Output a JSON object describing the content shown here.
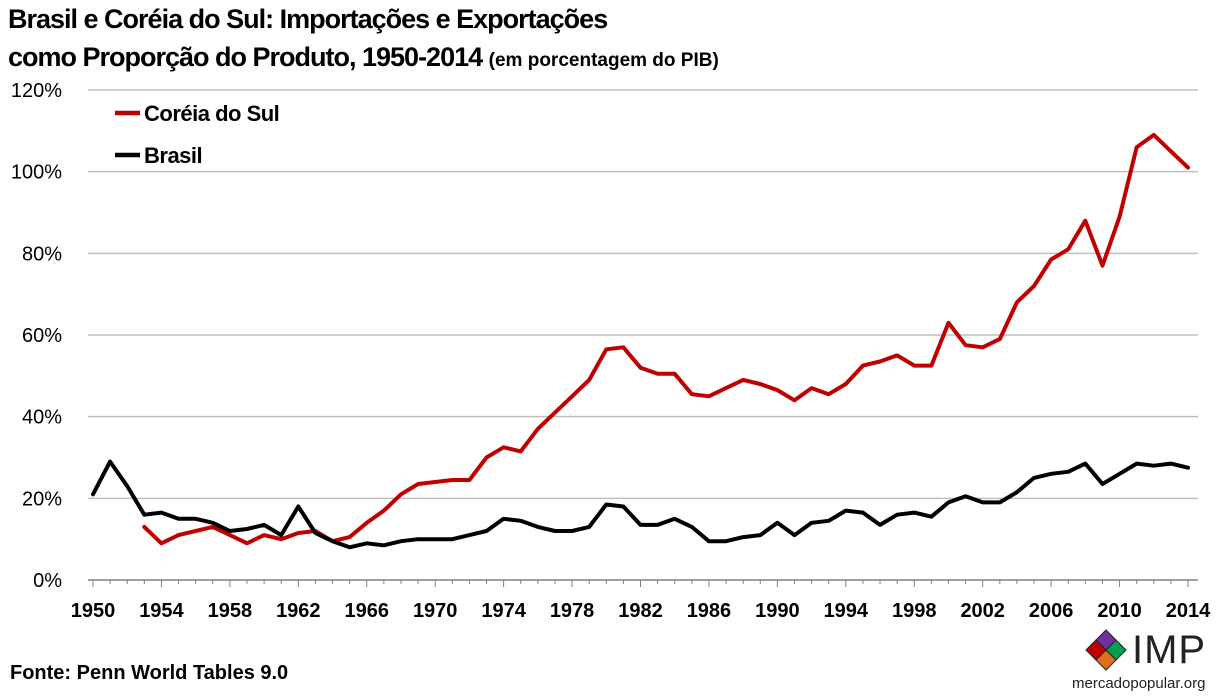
{
  "header": {
    "title_line1": "Brasil e Coréia do Sul: Importações e Exportações",
    "title_line2": "como Proporção do Produto, 1950-2014",
    "title_note": "(em porcentagem do PIB)"
  },
  "footer": {
    "source": "Fonte: Penn World Tables 9.0",
    "logo_text": "IMP",
    "logo_url": "mercadopopular.org"
  },
  "colors": {
    "korea": "#c00000",
    "brazil": "#000000",
    "grid": "#c0c0c0",
    "logo_diamonds": [
      "#7030a0",
      "#c00000",
      "#00a050",
      "#e07020"
    ]
  },
  "chart_data": {
    "type": "line",
    "title": "Brasil e Coréia do Sul: Importações e Exportações como Proporção do Produto, 1950-2014",
    "subtitle": "(em porcentagem do PIB)",
    "xlabel": "",
    "ylabel": "",
    "xlim": [
      1950,
      2014
    ],
    "ylim": [
      0,
      120
    ],
    "x_ticks": [
      "1950",
      "1954",
      "1958",
      "1962",
      "1966",
      "1970",
      "1974",
      "1978",
      "1982",
      "1986",
      "1990",
      "1994",
      "1998",
      "2002",
      "2006",
      "2010",
      "2014"
    ],
    "y_ticks": [
      "0%",
      "20%",
      "40%",
      "60%",
      "80%",
      "100%",
      "120%"
    ],
    "grid": "horizontal",
    "legend_position": "top-left",
    "series": [
      {
        "name": "Coréia do Sul",
        "color": "#c00000",
        "x": [
          1953,
          1954,
          1955,
          1956,
          1957,
          1958,
          1959,
          1960,
          1961,
          1962,
          1963,
          1964,
          1965,
          1966,
          1967,
          1968,
          1969,
          1970,
          1971,
          1972,
          1973,
          1974,
          1975,
          1976,
          1977,
          1978,
          1979,
          1980,
          1981,
          1982,
          1983,
          1984,
          1985,
          1986,
          1987,
          1988,
          1989,
          1990,
          1991,
          1992,
          1993,
          1994,
          1995,
          1996,
          1997,
          1998,
          1999,
          2000,
          2001,
          2002,
          2003,
          2004,
          2005,
          2006,
          2007,
          2008,
          2009,
          2010,
          2011,
          2012,
          2013,
          2014
        ],
        "values": [
          13,
          9,
          11,
          12,
          13,
          11,
          9,
          11,
          10,
          11.5,
          12,
          9.5,
          10.5,
          14,
          17,
          21,
          23.5,
          24,
          24.5,
          24.5,
          30,
          32.5,
          31.5,
          37,
          41,
          45,
          49,
          56.5,
          57,
          52,
          50.5,
          50.5,
          45.5,
          45,
          47,
          49,
          48,
          46.5,
          44,
          47,
          45.5,
          48,
          52.5,
          53.5,
          55,
          52.5,
          52.5,
          63,
          57.5,
          57,
          59,
          68,
          72,
          78.5,
          81,
          88,
          77,
          89,
          106,
          109,
          105,
          101
        ]
      },
      {
        "name": "Brasil",
        "color": "#000000",
        "x": [
          1950,
          1951,
          1952,
          1953,
          1954,
          1955,
          1956,
          1957,
          1958,
          1959,
          1960,
          1961,
          1962,
          1963,
          1964,
          1965,
          1966,
          1967,
          1968,
          1969,
          1970,
          1971,
          1972,
          1973,
          1974,
          1975,
          1976,
          1977,
          1978,
          1979,
          1980,
          1981,
          1982,
          1983,
          1984,
          1985,
          1986,
          1987,
          1988,
          1989,
          1990,
          1991,
          1992,
          1993,
          1994,
          1995,
          1996,
          1997,
          1998,
          1999,
          2000,
          2001,
          2002,
          2003,
          2004,
          2005,
          2006,
          2007,
          2008,
          2009,
          2010,
          2011,
          2012,
          2013,
          2014
        ],
        "values": [
          21,
          29,
          23,
          16,
          16.5,
          15,
          15,
          14,
          12,
          12.5,
          13.5,
          11,
          18,
          11.5,
          9.5,
          8,
          9,
          8.5,
          9.5,
          10,
          10,
          10,
          11,
          12,
          15,
          14.5,
          13,
          12,
          12,
          13,
          18.5,
          18,
          13.5,
          13.5,
          15,
          13,
          9.5,
          9.5,
          10.5,
          11,
          14,
          11,
          14,
          14.5,
          17,
          16.5,
          13.5,
          16,
          16.5,
          15.5,
          19,
          20.5,
          19,
          19,
          21.5,
          25,
          26,
          26.5,
          28.5,
          23.5,
          26,
          28.5,
          28,
          28.5,
          27.5
        ]
      }
    ]
  }
}
